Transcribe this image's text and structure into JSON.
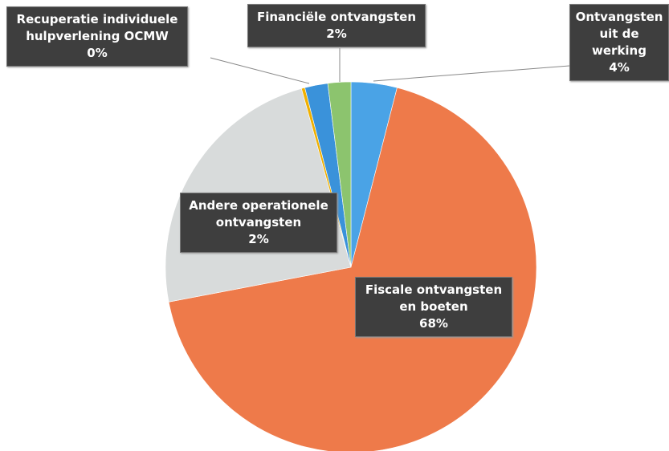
{
  "chart_data": {
    "type": "pie",
    "categories": [
      "Ontvangsten uit de werking",
      "Fiscale ontvangsten en boeten",
      null,
      "Recuperatie individuele hulpverlening OCMW",
      "Andere operationele ontvangsten",
      "Financiële ontvangsten"
    ],
    "values": [
      4,
      68,
      23.7,
      0.3,
      2,
      2
    ],
    "value_labels": [
      "4%",
      "68%",
      null,
      "0%",
      "2%",
      "2%"
    ],
    "colors": [
      "#4aa3e6",
      "#ee7a4a",
      "#d8dbdb",
      "#f0b000",
      "#3a92da",
      "#8cc46e"
    ]
  }
}
